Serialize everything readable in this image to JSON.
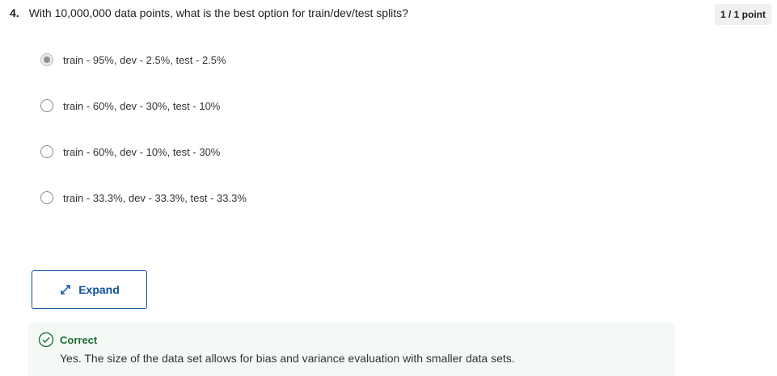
{
  "question": {
    "number": "4.",
    "text": "With 10,000,000 data points, what is the best option for train/dev/test splits?",
    "score": "1 / 1 point"
  },
  "options": [
    {
      "label": "train - 95%, dev - 2.5%, test - 2.5%",
      "selected": true
    },
    {
      "label": "train - 60%, dev - 30%, test - 10%",
      "selected": false
    },
    {
      "label": "train - 60%, dev - 10%, test - 30%",
      "selected": false
    },
    {
      "label": "train - 33.3%, dev - 33.3%, test - 33.3%",
      "selected": false
    }
  ],
  "expand": {
    "label": "Expand",
    "icon": "expand-arrows-icon"
  },
  "feedback": {
    "status": "Correct",
    "message": "Yes. The size of the data set allows for bias and variance evaluation with smaller data sets.",
    "color": "#1d6b33"
  }
}
